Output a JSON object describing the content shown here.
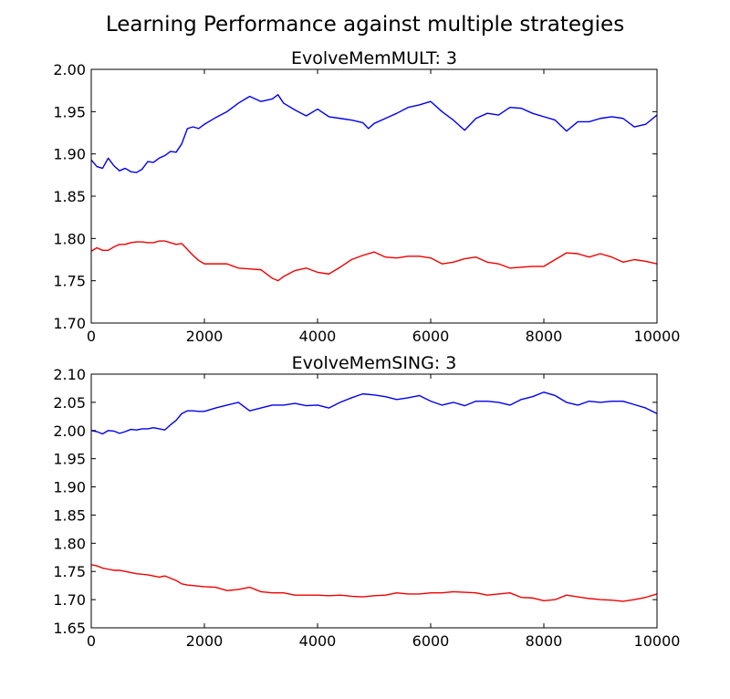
{
  "figure": {
    "title": "Learning Performance against multiple strategies"
  },
  "colors": {
    "series_1": "#0000ee",
    "series_2": "#ee0000",
    "axes": "#000000",
    "background": "#ffffff"
  },
  "chart_data": [
    {
      "type": "line",
      "title": "EvolveMemMULT: 3",
      "xlabel": "",
      "ylabel": "",
      "xlim": [
        0,
        10000
      ],
      "ylim": [
        1.7,
        2.0
      ],
      "xticks": [
        "0",
        "2000",
        "4000",
        "6000",
        "8000",
        "10000"
      ],
      "yticks": [
        "1.70",
        "1.75",
        "1.80",
        "1.85",
        "1.90",
        "1.95",
        "2.00"
      ],
      "grid": false,
      "series": [
        {
          "color": "#0000ee",
          "x": [
            0,
            100,
            200,
            300,
            400,
            500,
            600,
            700,
            800,
            900,
            1000,
            1100,
            1200,
            1300,
            1400,
            1500,
            1600,
            1700,
            1800,
            1900,
            2000,
            2200,
            2400,
            2600,
            2800,
            3000,
            3200,
            3300,
            3400,
            3600,
            3800,
            4000,
            4200,
            4400,
            4600,
            4800,
            4900,
            5000,
            5200,
            5400,
            5600,
            5800,
            6000,
            6200,
            6400,
            6600,
            6800,
            7000,
            7200,
            7400,
            7600,
            7800,
            8000,
            8200,
            8400,
            8600,
            8800,
            9000,
            9200,
            9400,
            9600,
            9800,
            10000
          ],
          "y": [
            1.893,
            1.885,
            1.883,
            1.895,
            1.886,
            1.88,
            1.883,
            1.879,
            1.878,
            1.882,
            1.891,
            1.89,
            1.895,
            1.898,
            1.903,
            1.902,
            1.912,
            1.93,
            1.932,
            1.93,
            1.935,
            1.943,
            1.95,
            1.96,
            1.968,
            1.962,
            1.965,
            1.97,
            1.96,
            1.952,
            1.945,
            1.953,
            1.944,
            1.942,
            1.94,
            1.937,
            1.93,
            1.936,
            1.942,
            1.948,
            1.955,
            1.958,
            1.962,
            1.95,
            1.94,
            1.928,
            1.942,
            1.948,
            1.946,
            1.955,
            1.954,
            1.948,
            1.944,
            1.94,
            1.927,
            1.938,
            1.938,
            1.942,
            1.944,
            1.942,
            1.932,
            1.935,
            1.946
          ]
        },
        {
          "color": "#ee0000",
          "x": [
            0,
            100,
            200,
            300,
            400,
            500,
            600,
            700,
            800,
            900,
            1000,
            1100,
            1200,
            1300,
            1400,
            1500,
            1600,
            1700,
            1800,
            1900,
            2000,
            2200,
            2400,
            2600,
            2800,
            3000,
            3200,
            3300,
            3400,
            3600,
            3800,
            4000,
            4200,
            4400,
            4600,
            4800,
            5000,
            5200,
            5400,
            5600,
            5800,
            6000,
            6200,
            6400,
            6600,
            6800,
            7000,
            7200,
            7400,
            7600,
            7800,
            8000,
            8200,
            8400,
            8600,
            8800,
            9000,
            9200,
            9400,
            9600,
            9800,
            10000
          ],
          "y": [
            1.785,
            1.789,
            1.786,
            1.786,
            1.79,
            1.793,
            1.793,
            1.795,
            1.796,
            1.796,
            1.795,
            1.795,
            1.797,
            1.797,
            1.795,
            1.793,
            1.794,
            1.787,
            1.78,
            1.774,
            1.77,
            1.77,
            1.77,
            1.765,
            1.764,
            1.763,
            1.753,
            1.75,
            1.755,
            1.762,
            1.765,
            1.76,
            1.758,
            1.766,
            1.775,
            1.78,
            1.784,
            1.778,
            1.777,
            1.779,
            1.779,
            1.777,
            1.77,
            1.772,
            1.776,
            1.778,
            1.772,
            1.77,
            1.765,
            1.766,
            1.767,
            1.767,
            1.775,
            1.783,
            1.782,
            1.778,
            1.782,
            1.778,
            1.772,
            1.775,
            1.773,
            1.77
          ]
        }
      ]
    },
    {
      "type": "line",
      "title": "EvolveMemSING: 3",
      "xlabel": "",
      "ylabel": "",
      "xlim": [
        0,
        10000
      ],
      "ylim": [
        1.65,
        2.1
      ],
      "xticks": [
        "0",
        "2000",
        "4000",
        "6000",
        "8000",
        "10000"
      ],
      "yticks": [
        "1.65",
        "1.70",
        "1.75",
        "1.80",
        "1.85",
        "1.90",
        "1.95",
        "2.00",
        "2.05",
        "2.10"
      ],
      "grid": false,
      "series": [
        {
          "color": "#0000ee",
          "x": [
            0,
            100,
            200,
            300,
            400,
            500,
            600,
            700,
            800,
            900,
            1000,
            1100,
            1200,
            1300,
            1400,
            1500,
            1600,
            1700,
            1800,
            1900,
            2000,
            2200,
            2400,
            2600,
            2800,
            3000,
            3200,
            3400,
            3600,
            3800,
            4000,
            4200,
            4400,
            4600,
            4800,
            5000,
            5200,
            5400,
            5600,
            5800,
            6000,
            6200,
            6400,
            6600,
            6800,
            7000,
            7200,
            7400,
            7600,
            7800,
            8000,
            8200,
            8400,
            8600,
            8800,
            9000,
            9200,
            9400,
            9600,
            9800,
            10000
          ],
          "y": [
            2.0,
            1.998,
            1.994,
            2.0,
            1.999,
            1.995,
            1.998,
            2.002,
            2.001,
            2.003,
            2.003,
            2.005,
            2.003,
            2.001,
            2.01,
            2.018,
            2.03,
            2.035,
            2.035,
            2.034,
            2.034,
            2.04,
            2.045,
            2.05,
            2.035,
            2.04,
            2.045,
            2.045,
            2.048,
            2.044,
            2.045,
            2.04,
            2.05,
            2.058,
            2.065,
            2.063,
            2.06,
            2.055,
            2.058,
            2.062,
            2.052,
            2.045,
            2.05,
            2.044,
            2.052,
            2.052,
            2.05,
            2.045,
            2.055,
            2.06,
            2.068,
            2.062,
            2.05,
            2.045,
            2.052,
            2.05,
            2.052,
            2.052,
            2.046,
            2.04,
            2.03
          ]
        },
        {
          "color": "#ee0000",
          "x": [
            0,
            100,
            200,
            300,
            400,
            500,
            600,
            700,
            800,
            900,
            1000,
            1100,
            1200,
            1300,
            1400,
            1500,
            1600,
            1700,
            1800,
            1900,
            2000,
            2200,
            2400,
            2600,
            2800,
            3000,
            3200,
            3400,
            3600,
            3800,
            4000,
            4200,
            4400,
            4600,
            4800,
            5000,
            5200,
            5400,
            5600,
            5800,
            6000,
            6200,
            6400,
            6600,
            6800,
            7000,
            7200,
            7400,
            7600,
            7800,
            8000,
            8200,
            8400,
            8600,
            8800,
            9000,
            9200,
            9400,
            9600,
            9800,
            10000
          ],
          "y": [
            1.762,
            1.76,
            1.756,
            1.754,
            1.752,
            1.752,
            1.75,
            1.748,
            1.746,
            1.745,
            1.744,
            1.742,
            1.74,
            1.742,
            1.738,
            1.734,
            1.728,
            1.726,
            1.725,
            1.724,
            1.723,
            1.722,
            1.716,
            1.718,
            1.722,
            1.714,
            1.712,
            1.712,
            1.708,
            1.708,
            1.708,
            1.707,
            1.708,
            1.706,
            1.705,
            1.707,
            1.708,
            1.712,
            1.71,
            1.71,
            1.712,
            1.712,
            1.714,
            1.713,
            1.712,
            1.708,
            1.71,
            1.712,
            1.704,
            1.703,
            1.698,
            1.7,
            1.708,
            1.705,
            1.702,
            1.7,
            1.699,
            1.697,
            1.7,
            1.704,
            1.71
          ]
        }
      ]
    }
  ]
}
